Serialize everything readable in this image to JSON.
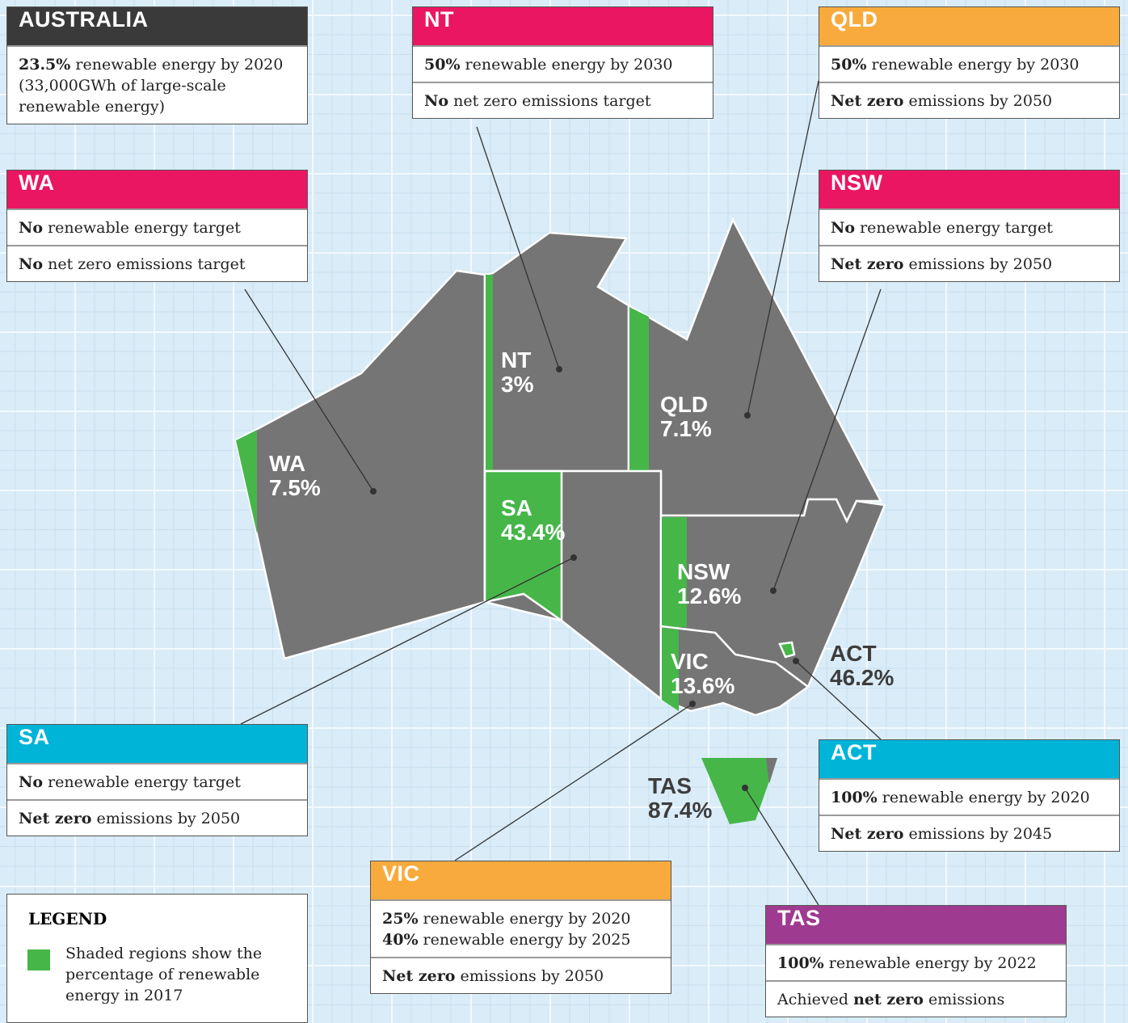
{
  "panels": [
    {
      "title": "AUSTRALIA",
      "rows": [
        [
          [
            {
              "text": "23.5%",
              "bold": true
            },
            {
              "text": " renewable energy by 2020"
            }
          ],
          [
            {
              "text": "(33,000GWh of large-scale"
            }
          ],
          [
            {
              "text": "renewable energy)"
            }
          ]
        ]
      ]
    },
    {
      "title": "NT",
      "rows": [
        [
          [
            {
              "text": "50%",
              "bold": true
            },
            {
              "text": " renewable energy by 2030"
            }
          ]
        ],
        [
          [
            {
              "text": "No",
              "bold": true
            },
            {
              "text": " net zero emissions target"
            }
          ]
        ]
      ]
    },
    {
      "title": "QLD",
      "rows": [
        [
          [
            {
              "text": "50%",
              "bold": true
            },
            {
              "text": " renewable energy by 2030"
            }
          ]
        ],
        [
          [
            {
              "text": "Net zero",
              "bold": true
            },
            {
              "text": " emissions by 2050"
            }
          ]
        ]
      ]
    },
    {
      "title": "WA",
      "rows": [
        [
          [
            {
              "text": "No",
              "bold": true
            },
            {
              "text": " renewable energy target"
            }
          ]
        ],
        [
          [
            {
              "text": "No",
              "bold": true
            },
            {
              "text": " net zero emissions target"
            }
          ]
        ]
      ]
    },
    {
      "title": "NSW",
      "rows": [
        [
          [
            {
              "text": "No",
              "bold": true
            },
            {
              "text": " renewable energy target"
            }
          ]
        ],
        [
          [
            {
              "text": "Net zero",
              "bold": true
            },
            {
              "text": " emissions by 2050"
            }
          ]
        ]
      ]
    },
    {
      "title": "SA",
      "rows": [
        [
          [
            {
              "text": "No",
              "bold": true
            },
            {
              "text": " renewable energy target"
            }
          ]
        ],
        [
          [
            {
              "text": "Net zero",
              "bold": true
            },
            {
              "text": " emissions by 2050"
            }
          ]
        ]
      ]
    },
    {
      "title": "ACT",
      "rows": [
        [
          [
            {
              "text": "100%",
              "bold": true
            },
            {
              "text": " renewable energy by 2020"
            }
          ]
        ],
        [
          [
            {
              "text": "Net zero",
              "bold": true
            },
            {
              "text": " emissions by 2045"
            }
          ]
        ]
      ]
    },
    {
      "title": "VIC",
      "rows": [
        [
          [
            {
              "text": "25%",
              "bold": true
            },
            {
              "text": " renewable energy by 2020"
            }
          ],
          [
            {
              "text": "40%",
              "bold": true
            },
            {
              "text": " renewable energy by 2025"
            }
          ]
        ],
        [
          [
            {
              "text": "Net zero",
              "bold": true
            },
            {
              "text": " emissions by 2050"
            }
          ]
        ]
      ]
    },
    {
      "title": "TAS",
      "rows": [
        [
          [
            {
              "text": "100%",
              "bold": true
            },
            {
              "text": " renewable energy by 2022"
            }
          ]
        ],
        [
          [
            {
              "text": "Achieved "
            },
            {
              "text": "net zero",
              "bold": true
            },
            {
              "text": " emissions"
            }
          ]
        ]
      ]
    }
  ],
  "map_labels": [
    {
      "name": "NT",
      "value": "3%"
    },
    {
      "name": "QLD",
      "value": "7.1%"
    },
    {
      "name": "WA",
      "value": "7.5%"
    },
    {
      "name": "SA",
      "value": "43.4%"
    },
    {
      "name": "NSW",
      "value": "12.6%"
    },
    {
      "name": "VIC",
      "value": "13.6%"
    },
    {
      "name": "ACT",
      "value": "46.2%"
    },
    {
      "name": "TAS",
      "value": "87.4%"
    }
  ],
  "legend": {
    "title": "LEGEND",
    "lines": [
      "Shaded regions show the",
      "percentage of renewable",
      "energy in 2017"
    ]
  }
}
